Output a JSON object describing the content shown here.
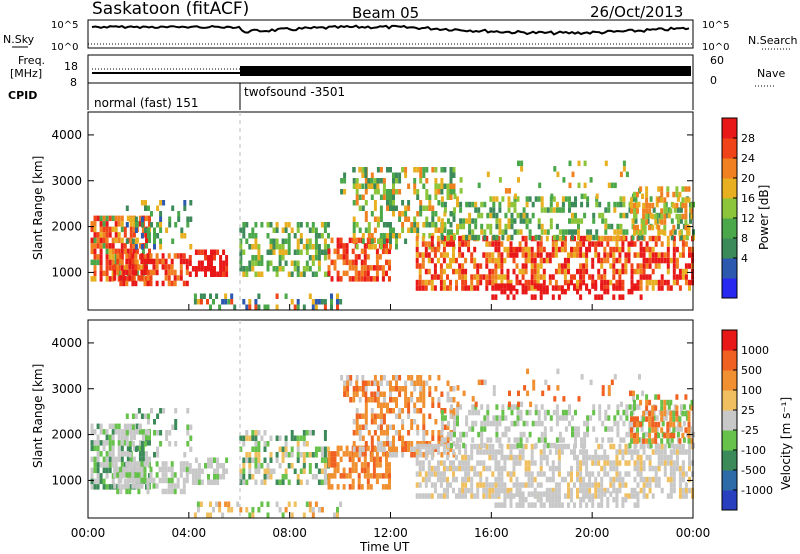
{
  "header": {
    "station": "Saskatoon (fitACF)",
    "beam": "Beam 05",
    "date": "26/Oct/2013"
  },
  "param_panel": {
    "nsky_label": "N.Sky",
    "nsky_ticks": [
      "10^5",
      "10^0"
    ],
    "nsearch_label": "N.Search",
    "nsearch_ticks": [
      "10^5",
      "10^0"
    ],
    "freq_label_line1": "Freq.",
    "freq_label_line2": "[MHz]",
    "freq_ticks": [
      "18",
      "8"
    ],
    "nave_label": "Nave",
    "nave_ticks": [
      "60",
      "0"
    ],
    "cpid_label": "CPID",
    "modes": [
      {
        "name": "normal (fast) 151",
        "start_hour": 0,
        "end_hour": 6
      },
      {
        "name": "twofsound -3501",
        "start_hour": 6,
        "end_hour": 24
      }
    ]
  },
  "axes": {
    "y_label": "Slant Range [km]",
    "y_ticks": [
      "1000",
      "2000",
      "3000",
      "4000"
    ],
    "x_ticks": [
      "00:00",
      "04:00",
      "08:00",
      "12:00",
      "16:00",
      "20:00",
      "00:00"
    ],
    "x_label": "Time UT"
  },
  "power_scale": {
    "label": "Power [dB]",
    "ticks": [
      "4",
      "8",
      "12",
      "16",
      "20",
      "24",
      "28"
    ],
    "colors": [
      "#2828f0",
      "#2c58b0",
      "#3c8a5a",
      "#4aa84a",
      "#8cc43a",
      "#e8b020",
      "#f08020",
      "#f04418",
      "#e81818"
    ]
  },
  "velocity_scale": {
    "label": "Velocity [m s⁻¹]",
    "ticks": [
      "1000",
      "500",
      "100",
      "25",
      "-25",
      "-100",
      "-500",
      "-1000"
    ],
    "colors": [
      "#2840c0",
      "#2c6aa8",
      "#3c8a5a",
      "#66c24a",
      "#c8c8c8",
      "#f0c060",
      "#f09030",
      "#f06020",
      "#e81818"
    ]
  },
  "chart_data": {
    "type": "heatmap",
    "x_range_hours": [
      0,
      24
    ],
    "y_range_km": [
      180,
      4500
    ],
    "x_ticks_hours": [
      0,
      4,
      8,
      12,
      16,
      20,
      24
    ],
    "y_ticks_km": [
      1000,
      2000,
      3000,
      4000
    ],
    "panels": [
      "Power [dB]",
      "Velocity [m s-1]"
    ],
    "mode_change_hour": 6
  }
}
